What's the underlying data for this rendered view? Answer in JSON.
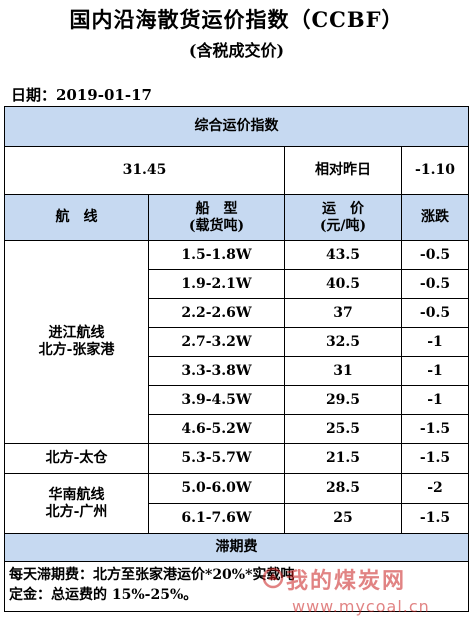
{
  "header": {
    "title": "国内沿海散货运价指数（CCBF）",
    "subtitle": "(含税成交价)",
    "date": "日期：2019-01-17"
  },
  "summary": {
    "heading": "综合运价指数",
    "index_value": "31.45",
    "compare_label": "相对昨日",
    "change": "-1.10"
  },
  "columns": {
    "route": "航　线",
    "ship_type_line1": "船　型",
    "ship_type_line2": "(载货吨)",
    "freight_line1": "运　价",
    "freight_line2": "(元/吨)",
    "change": "涨跌"
  },
  "routes": [
    {
      "line1": "进江航线",
      "line2": "北方-张家港",
      "rows": [
        {
          "ship_type": "1.5-1.8W",
          "freight": "43.5",
          "change": "-0.5"
        },
        {
          "ship_type": "1.9-2.1W",
          "freight": "40.5",
          "change": "-0.5"
        },
        {
          "ship_type": "2.2-2.6W",
          "freight": "37",
          "change": "-0.5"
        },
        {
          "ship_type": "2.7-3.2W",
          "freight": "32.5",
          "change": "-1"
        },
        {
          "ship_type": "3.3-3.8W",
          "freight": "31",
          "change": "-1"
        },
        {
          "ship_type": "3.9-4.5W",
          "freight": "29.5",
          "change": "-1"
        },
        {
          "ship_type": "4.6-5.2W",
          "freight": "25.5",
          "change": "-1.5"
        }
      ]
    },
    {
      "line1": "北方-太仓",
      "line2": "",
      "rows": [
        {
          "ship_type": "5.3-5.7W",
          "freight": "21.5",
          "change": "-1.5"
        }
      ]
    },
    {
      "line1": "华南航线",
      "line2": "北方-广州",
      "rows": [
        {
          "ship_type": "5.0-6.0W",
          "freight": "28.5",
          "change": "-2"
        },
        {
          "ship_type": "6.1-7.6W",
          "freight": "25",
          "change": "-1.5"
        }
      ]
    }
  ],
  "demurrage": {
    "heading": "滞期费",
    "line1": "每天滞期费：北方至张家港运价*20%*实载吨",
    "line2": "定金：总运费的 15%-25%。"
  },
  "watermark": {
    "site_name": "我的煤炭网",
    "url": "www.mycoal.cn"
  },
  "colors": {
    "header_blue": "#c6d9f1",
    "watermark_red": "#c81e1e"
  }
}
